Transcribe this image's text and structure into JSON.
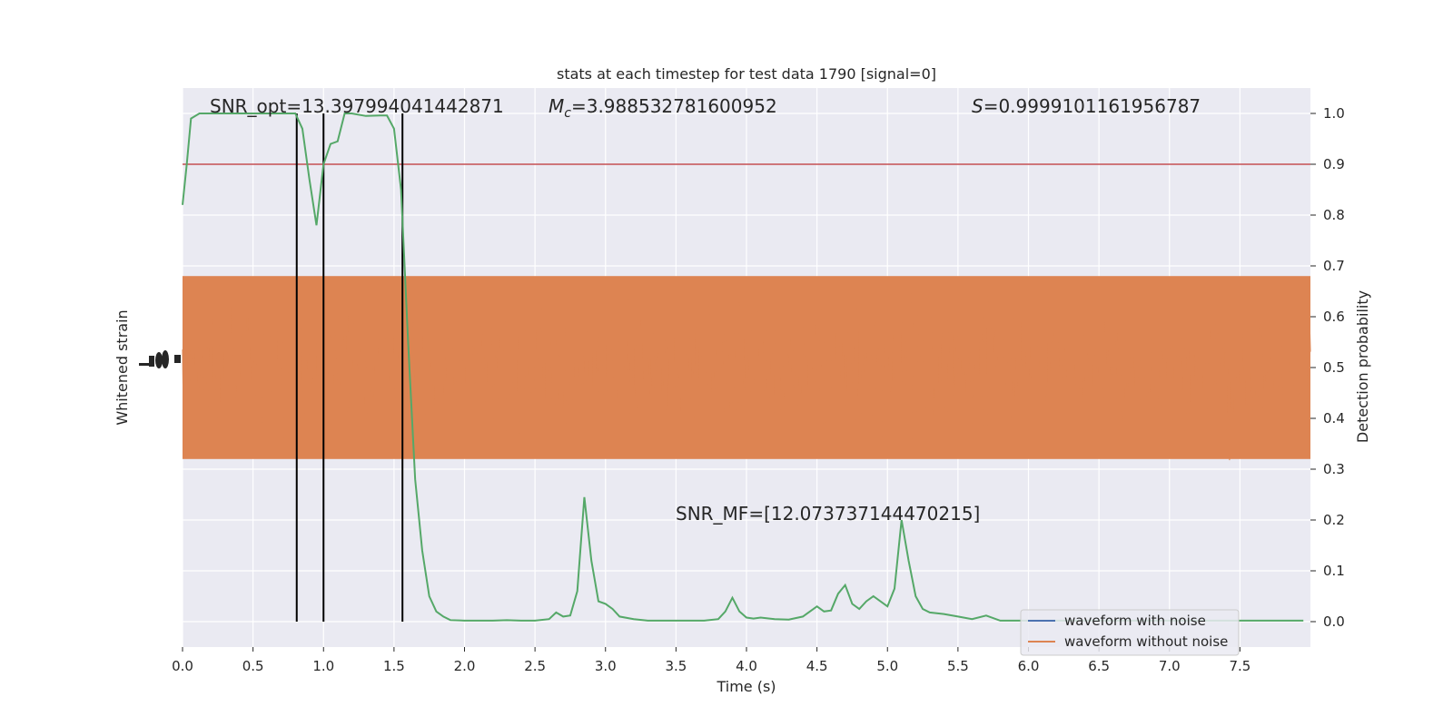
{
  "chart_data": {
    "type": "line",
    "title": "stats at each timestep for test data 1790 [signal=0]",
    "xlabel": "Time (s)",
    "ylabel_left": "Whitened strain",
    "ylabel_right": "Detection probability",
    "xlim": [
      0.0,
      8.0
    ],
    "ylim_right": [
      -0.05,
      1.05
    ],
    "x_ticks": [
      "0.0",
      "0.5",
      "1.0",
      "1.5",
      "2.0",
      "2.5",
      "3.0",
      "3.5",
      "4.0",
      "4.5",
      "5.0",
      "5.5",
      "6.0",
      "6.5",
      "7.0",
      "7.5"
    ],
    "x_tick_values": [
      0,
      0.5,
      1,
      1.5,
      2,
      2.5,
      3,
      3.5,
      4,
      4.5,
      5,
      5.5,
      6,
      6.5,
      7,
      7.5
    ],
    "y_right_ticks": [
      "0.0",
      "0.1",
      "0.2",
      "0.3",
      "0.4",
      "0.5",
      "0.6",
      "0.7",
      "0.8",
      "0.9",
      "1.0"
    ],
    "y_right_tick_values": [
      0,
      0.1,
      0.2,
      0.3,
      0.4,
      0.5,
      0.6,
      0.7,
      0.8,
      0.9,
      1.0
    ],
    "annotations": {
      "snr_opt": "SNR_opt=13.397994041442871",
      "mc_symbol": "M",
      "mc_sub": "c",
      "mc_value": "=3.988532781600952",
      "s_symbol": "S",
      "s_value": "=0.9999101161956787",
      "snr_mf": "SNR_MF=[12.073737144470215]"
    },
    "threshold": {
      "value": 0.9,
      "color": "#c44e52"
    },
    "vlines": [
      0.81,
      1.0,
      1.56
    ],
    "series": [
      {
        "name": "waveform with noise",
        "color": "#4c72b0",
        "values": []
      },
      {
        "name": "waveform without noise",
        "color": "#dd8452",
        "x_range": [
          0.0,
          8.0
        ],
        "center": 0.5,
        "band_half_width": 0.22,
        "max_spike_up": 0.5,
        "max_spike_down": 0.48
      },
      {
        "name": "detection probability",
        "color": "#55a868",
        "x": [
          0.0,
          0.03,
          0.06,
          0.12,
          0.2,
          0.3,
          0.4,
          0.5,
          0.6,
          0.7,
          0.75,
          0.8,
          0.85,
          0.9,
          0.95,
          1.0,
          1.05,
          1.1,
          1.15,
          1.2,
          1.3,
          1.4,
          1.45,
          1.5,
          1.55,
          1.6,
          1.65,
          1.7,
          1.75,
          1.8,
          1.85,
          1.9,
          2.0,
          2.1,
          2.2,
          2.3,
          2.4,
          2.5,
          2.6,
          2.65,
          2.7,
          2.75,
          2.8,
          2.85,
          2.9,
          2.95,
          3.0,
          3.05,
          3.1,
          3.2,
          3.3,
          3.5,
          3.7,
          3.8,
          3.85,
          3.9,
          3.95,
          4.0,
          4.05,
          4.1,
          4.2,
          4.3,
          4.4,
          4.5,
          4.55,
          4.6,
          4.65,
          4.7,
          4.75,
          4.8,
          4.85,
          4.9,
          5.0,
          5.05,
          5.1,
          5.15,
          5.2,
          5.25,
          5.3,
          5.4,
          5.5,
          5.6,
          5.7,
          5.8,
          5.9,
          6.0,
          6.2,
          6.5,
          7.0,
          7.5,
          7.95
        ],
        "values": [
          0.82,
          0.9,
          0.99,
          1.0,
          1.0,
          1.0,
          1.0,
          1.0,
          1.0,
          1.0,
          1.0,
          1.0,
          0.97,
          0.87,
          0.78,
          0.9,
          0.94,
          0.945,
          1.0,
          1.0,
          0.995,
          0.996,
          0.996,
          0.97,
          0.85,
          0.55,
          0.28,
          0.14,
          0.05,
          0.02,
          0.01,
          0.003,
          0.002,
          0.002,
          0.002,
          0.003,
          0.002,
          0.002,
          0.005,
          0.018,
          0.01,
          0.012,
          0.06,
          0.245,
          0.12,
          0.04,
          0.035,
          0.025,
          0.01,
          0.005,
          0.002,
          0.002,
          0.002,
          0.005,
          0.02,
          0.047,
          0.02,
          0.008,
          0.006,
          0.008,
          0.005,
          0.004,
          0.01,
          0.03,
          0.02,
          0.022,
          0.055,
          0.072,
          0.035,
          0.025,
          0.04,
          0.05,
          0.03,
          0.065,
          0.2,
          0.12,
          0.05,
          0.025,
          0.018,
          0.015,
          0.01,
          0.005,
          0.012,
          0.002,
          0.002,
          0.002,
          0.002,
          0.002,
          0.002,
          0.002,
          0.002
        ]
      }
    ],
    "legend": {
      "position": "lower-right",
      "entries": [
        "waveform with noise",
        "waveform without noise"
      ]
    },
    "colors": {
      "plot_bg": "#eaeaf2",
      "grid": "#ffffff",
      "text": "#262626",
      "vline": "#000000"
    }
  }
}
